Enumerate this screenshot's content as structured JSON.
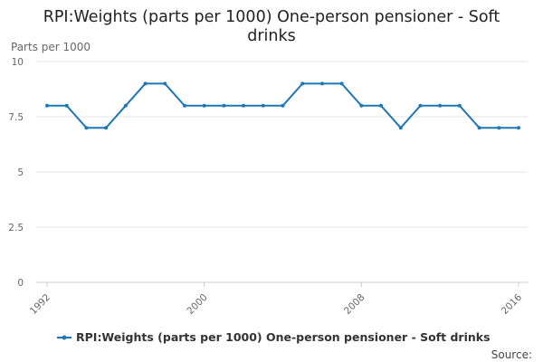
{
  "chart_data": {
    "type": "line",
    "title": "RPI:Weights (parts per 1000) One-person pensioner - Soft drinks",
    "ylabel": "Parts per 1000",
    "xlabel": "",
    "x": [
      1992,
      1993,
      1994,
      1995,
      1996,
      1997,
      1998,
      1999,
      2000,
      2001,
      2002,
      2003,
      2004,
      2005,
      2006,
      2007,
      2008,
      2009,
      2010,
      2011,
      2012,
      2013,
      2014,
      2015,
      2016
    ],
    "x_ticks": [
      1992,
      2000,
      2008,
      2016
    ],
    "ylim": [
      0,
      10
    ],
    "y_ticks": [
      0,
      2.5,
      5,
      7.5,
      10
    ],
    "y_tick_labels": [
      "0",
      "2.5",
      "5",
      "7.5",
      "10"
    ],
    "grid": true,
    "legend_position": "bottom",
    "series": [
      {
        "name": "RPI:Weights (parts per 1000) One-person pensioner - Soft drinks",
        "color": "#1f77b4",
        "values": [
          8,
          8,
          7,
          7,
          8,
          9,
          9,
          8,
          8,
          8,
          8,
          8,
          8,
          9,
          9,
          9,
          8,
          8,
          7,
          8,
          8,
          8,
          7,
          7,
          7
        ]
      }
    ],
    "source_label": "Source:"
  }
}
